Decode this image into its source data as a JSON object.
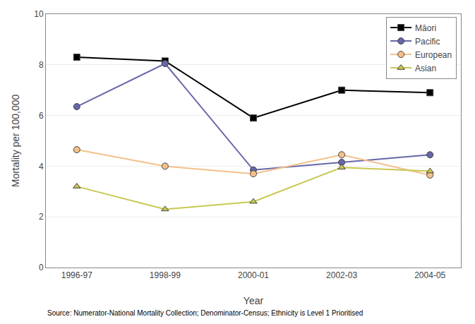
{
  "chart_data": {
    "type": "line",
    "categories": [
      "1996-97",
      "1998-99",
      "2000-01",
      "2002-03",
      "2004-05"
    ],
    "series": [
      {
        "name": "Māori",
        "color": "#000000",
        "marker": "square",
        "line_style": "solid",
        "values": [
          8.3,
          8.15,
          5.9,
          7.0,
          6.9
        ]
      },
      {
        "name": "Pacific",
        "color": "#6666AA",
        "marker": "circle",
        "line_style": "solid",
        "values": [
          6.35,
          8.05,
          3.85,
          4.15,
          4.45
        ]
      },
      {
        "name": "European",
        "color": "#F4C08A",
        "marker": "circle",
        "line_style": "solid",
        "values": [
          4.65,
          4.0,
          3.7,
          4.45,
          3.65
        ]
      },
      {
        "name": "Asian",
        "color": "#C8C850",
        "marker": "triangle-up",
        "line_style": "solid",
        "values": [
          3.2,
          2.3,
          2.6,
          3.95,
          3.8
        ]
      }
    ],
    "xlabel": "Year",
    "ylabel": "Mortality per 100,000",
    "ylim": [
      0,
      10
    ],
    "yticks": [
      0,
      2,
      4,
      6,
      8,
      10
    ],
    "grid": true,
    "legend": "upper right",
    "annotations": [
      "Source: Numerator-National Mortality Collection; Denominator-Census; Ethnicity is Level 1 Prioritised"
    ]
  }
}
